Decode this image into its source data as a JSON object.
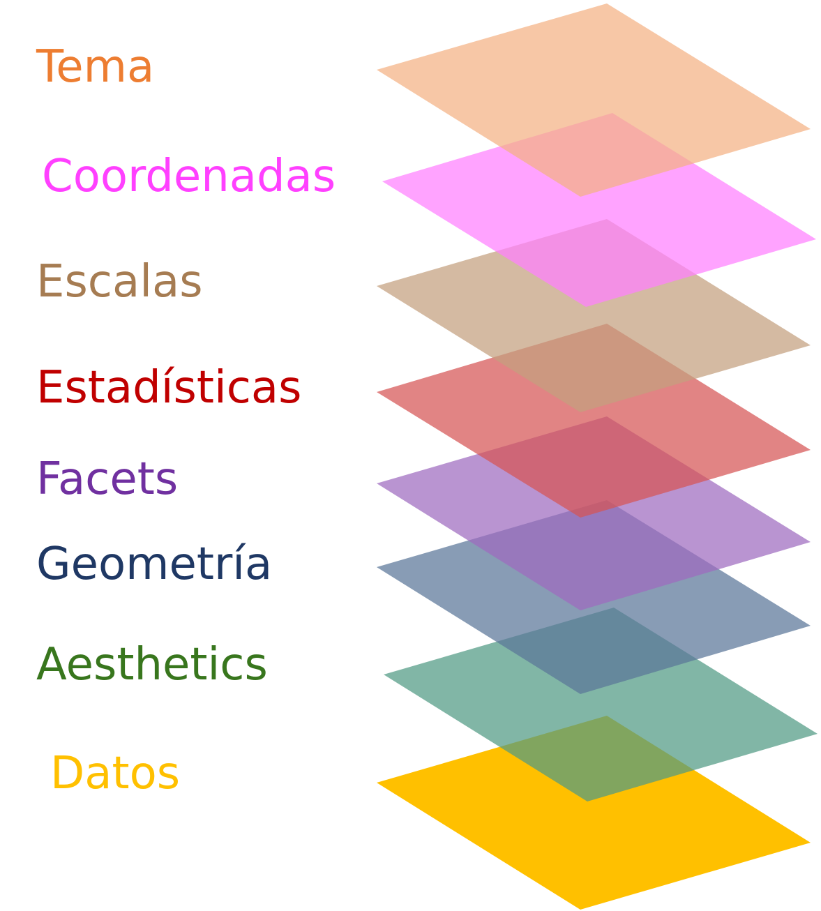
{
  "layers": [
    {
      "label": "Tema",
      "color": "#ED7D31",
      "fill": "#F4B183"
    },
    {
      "label": "Coordenadas",
      "color": "#FF40FF",
      "fill": "#FF80FF"
    },
    {
      "label": "Escalas",
      "color": "#A67C52",
      "fill": "#C4A07E"
    },
    {
      "label": "Estadísticas",
      "color": "#C00000",
      "fill": "#D65555"
    },
    {
      "label": "Facets",
      "color": "#7030A0",
      "fill": "#9E6BBF"
    },
    {
      "label": "Geometría",
      "color": "#1F3864",
      "fill": "#5A7699"
    },
    {
      "label": "Aesthetics",
      "color": "#38761D",
      "fill": "#509A84"
    },
    {
      "label": "Datos",
      "color": "#FFC000",
      "fill": "#FFC000"
    }
  ]
}
